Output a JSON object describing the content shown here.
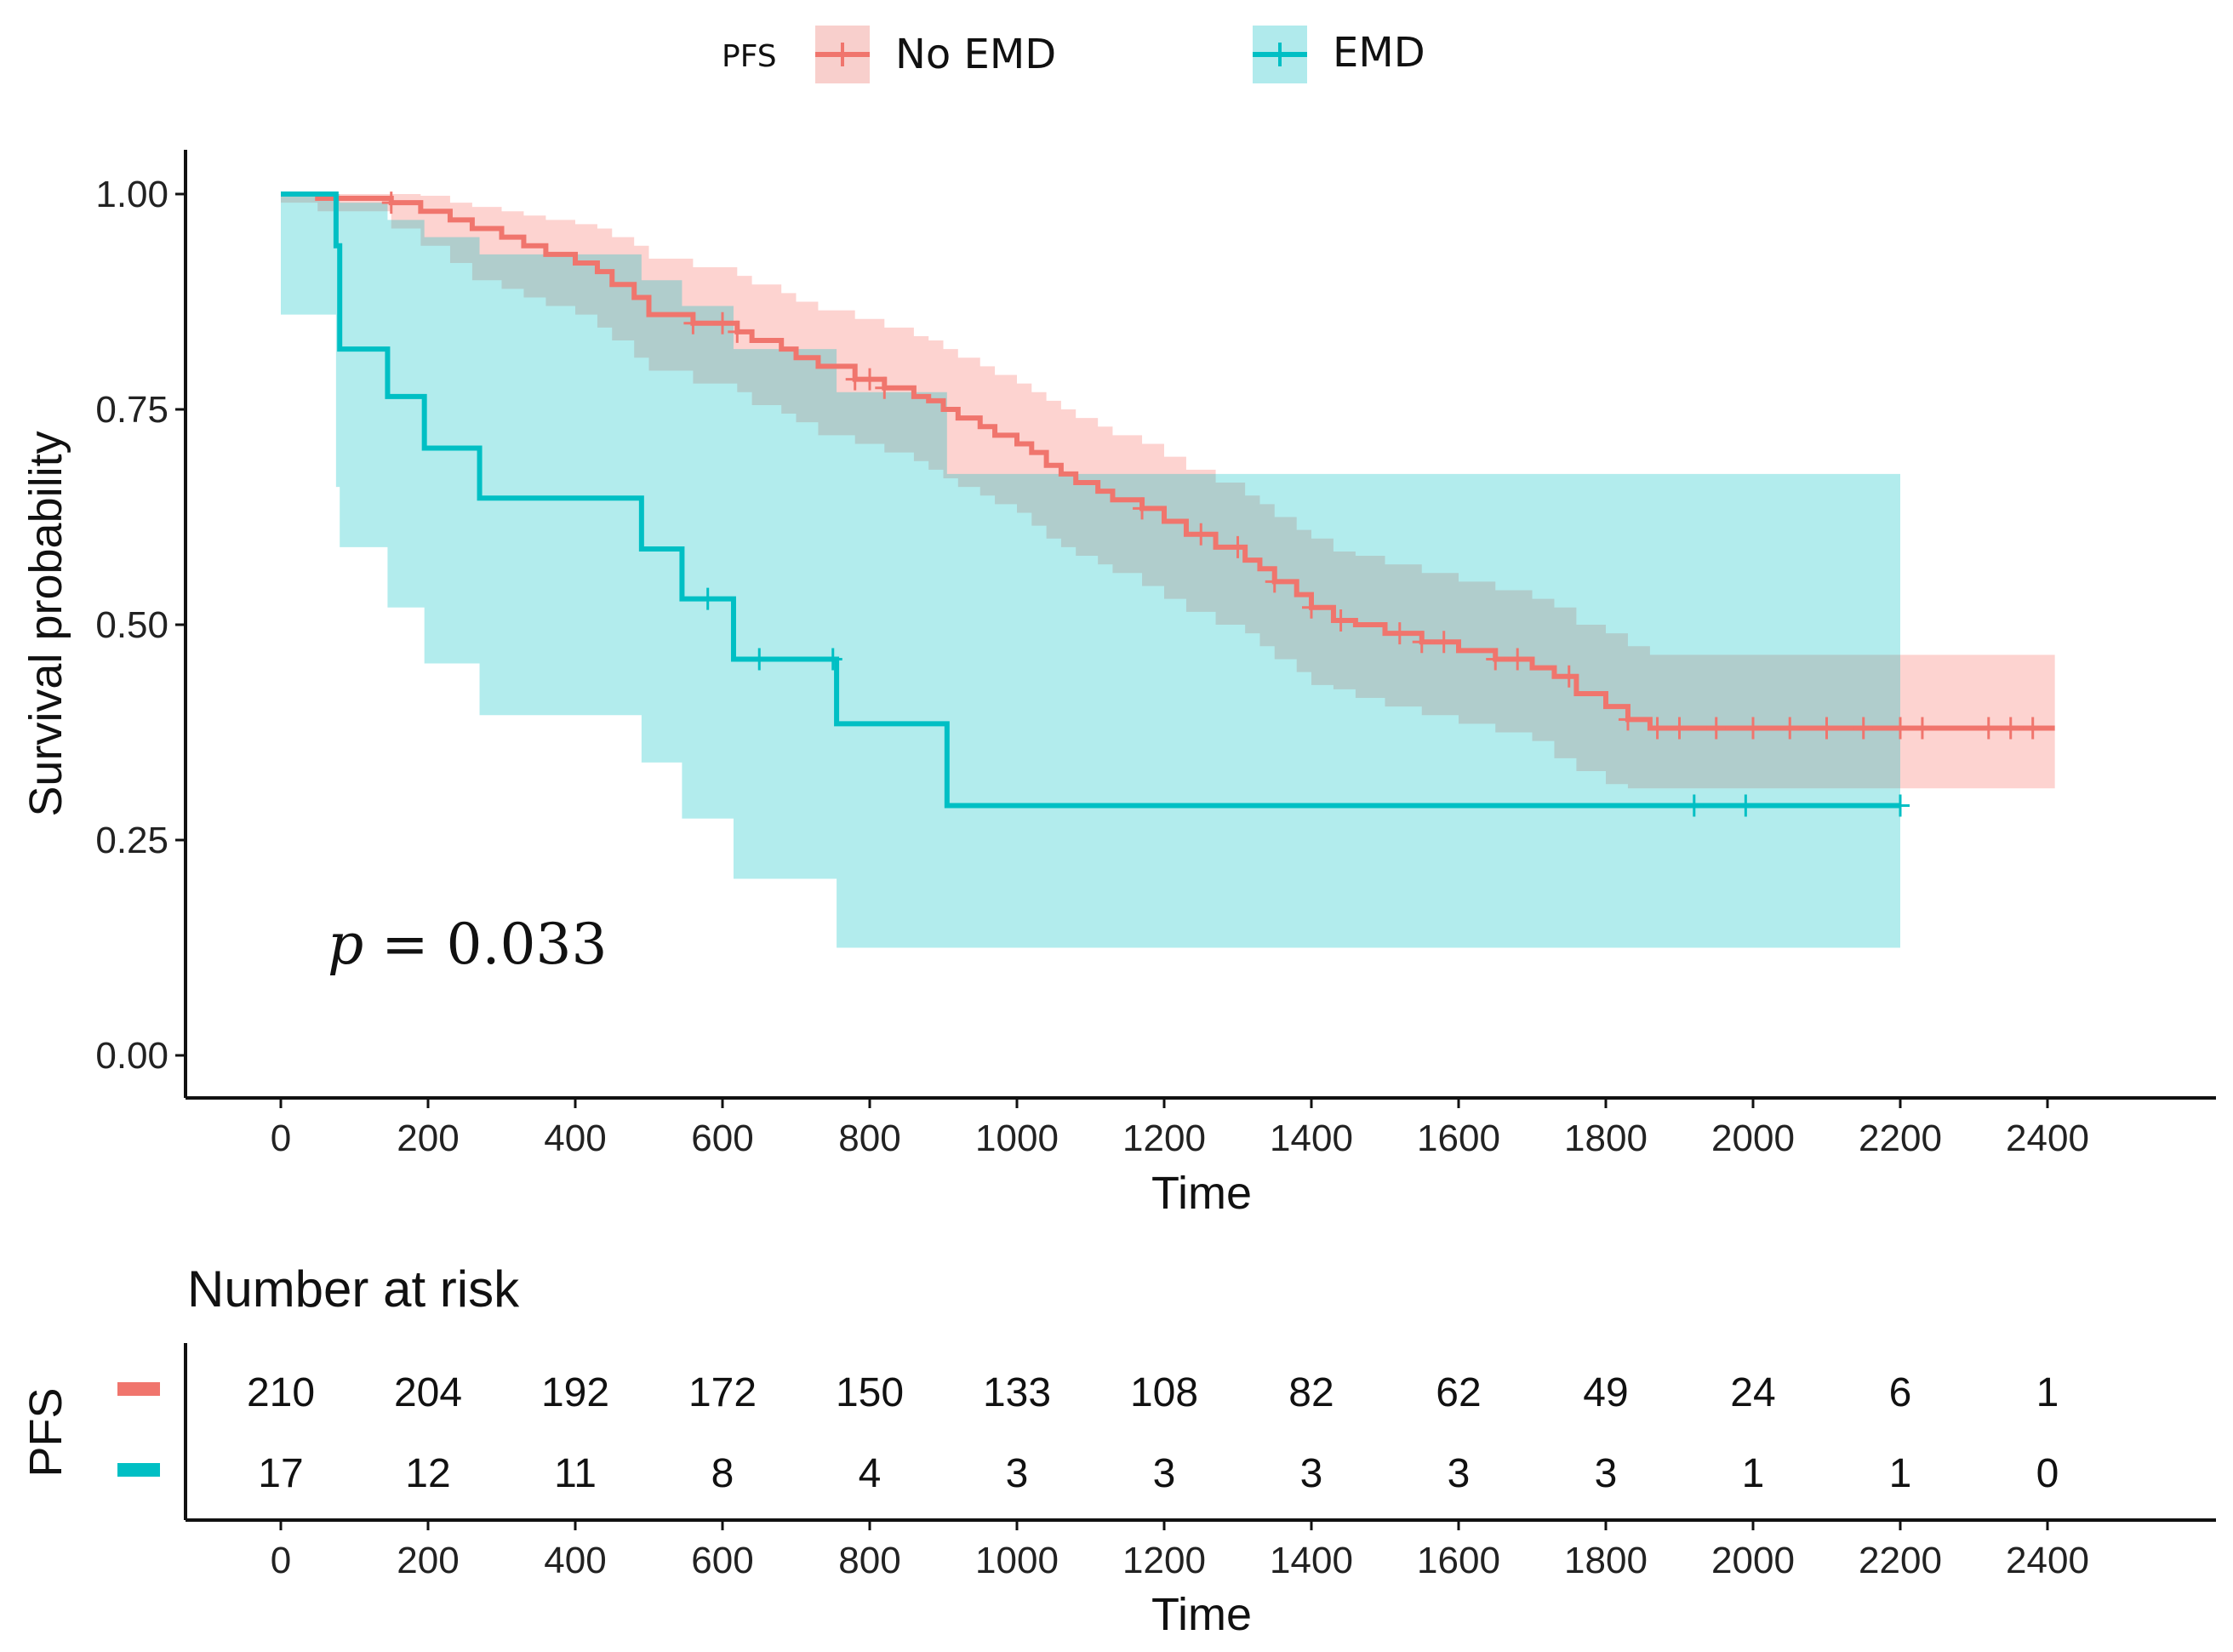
{
  "legend": {
    "title": "PFS",
    "entries": [
      {
        "label": "No EMD",
        "color": "#F0756D",
        "fill": "#F8CFCC"
      },
      {
        "label": "EMD",
        "color": "#00BFC4",
        "fill": "#B0EAEC"
      }
    ]
  },
  "annotation": {
    "p_label": "p",
    "p_eq": " = ",
    "p_value": "0.033"
  },
  "risk_table": {
    "title": "Number at risk",
    "ylabel": "PFS",
    "xlabel": "Time",
    "rows": [
      {
        "group": "No EMD",
        "color": "#F0756D",
        "counts": [
          "210",
          "204",
          "192",
          "172",
          "150",
          "133",
          "108",
          "82",
          "62",
          "49",
          "24",
          "6",
          "1"
        ]
      },
      {
        "group": "EMD",
        "color": "#00BFC4",
        "counts": [
          "17",
          "12",
          "11",
          "8",
          "4",
          "3",
          "3",
          "3",
          "3",
          "3",
          "1",
          "1",
          "0"
        ]
      }
    ]
  },
  "chart_data": {
    "type": "line",
    "subtype": "kaplan-meier step",
    "xlabel": "Time",
    "ylabel": "Survival probability",
    "xlim": [
      -125,
      2625
    ],
    "ylim": [
      -0.05,
      1.05
    ],
    "xticks": [
      "0",
      "200",
      "400",
      "600",
      "800",
      "1000",
      "1200",
      "1400",
      "1600",
      "1800",
      "2000",
      "2200",
      "2400"
    ],
    "xtick_values": [
      0,
      200,
      400,
      600,
      800,
      1000,
      1200,
      1400,
      1600,
      1800,
      2000,
      2200,
      2400
    ],
    "yticks": [
      "0.00",
      "0.25",
      "0.50",
      "0.75",
      "1.00"
    ],
    "ytick_values": [
      0,
      0.25,
      0.5,
      0.75,
      1.0
    ],
    "series": [
      {
        "name": "No EMD",
        "color": "#F0756D",
        "x": [
          0,
          50,
          150,
          190,
          230,
          260,
          300,
          330,
          360,
          400,
          430,
          450,
          480,
          500,
          560,
          620,
          640,
          680,
          700,
          730,
          780,
          820,
          860,
          880,
          900,
          920,
          950,
          970,
          1000,
          1020,
          1040,
          1060,
          1080,
          1110,
          1130,
          1170,
          1200,
          1230,
          1270,
          1310,
          1330,
          1350,
          1380,
          1400,
          1430,
          1460,
          1500,
          1550,
          1600,
          1650,
          1700,
          1730,
          1760,
          1800,
          1830,
          1860,
          2410
        ],
        "y": [
          1.0,
          0.995,
          0.99,
          0.98,
          0.97,
          0.96,
          0.95,
          0.94,
          0.93,
          0.92,
          0.91,
          0.895,
          0.88,
          0.86,
          0.85,
          0.84,
          0.83,
          0.82,
          0.81,
          0.8,
          0.785,
          0.775,
          0.765,
          0.76,
          0.75,
          0.74,
          0.73,
          0.72,
          0.71,
          0.7,
          0.685,
          0.675,
          0.665,
          0.655,
          0.645,
          0.635,
          0.62,
          0.605,
          0.59,
          0.575,
          0.565,
          0.55,
          0.535,
          0.52,
          0.505,
          0.5,
          0.49,
          0.48,
          0.47,
          0.46,
          0.45,
          0.44,
          0.42,
          0.405,
          0.39,
          0.38,
          0.38
        ],
        "ci_lower": [
          1.0,
          0.99,
          0.98,
          0.96,
          0.94,
          0.92,
          0.9,
          0.89,
          0.88,
          0.87,
          0.86,
          0.845,
          0.83,
          0.81,
          0.795,
          0.78,
          0.77,
          0.755,
          0.745,
          0.735,
          0.72,
          0.71,
          0.7,
          0.69,
          0.68,
          0.67,
          0.66,
          0.65,
          0.64,
          0.63,
          0.615,
          0.6,
          0.59,
          0.58,
          0.57,
          0.56,
          0.545,
          0.53,
          0.515,
          0.5,
          0.49,
          0.475,
          0.46,
          0.445,
          0.43,
          0.425,
          0.415,
          0.405,
          0.395,
          0.385,
          0.375,
          0.365,
          0.345,
          0.33,
          0.315,
          0.31,
          0.31
        ],
        "ci_upper": [
          1.0,
          1.0,
          1.0,
          0.998,
          0.99,
          0.985,
          0.98,
          0.975,
          0.97,
          0.965,
          0.96,
          0.95,
          0.94,
          0.925,
          0.915,
          0.905,
          0.895,
          0.885,
          0.875,
          0.865,
          0.855,
          0.845,
          0.835,
          0.83,
          0.82,
          0.81,
          0.8,
          0.79,
          0.78,
          0.77,
          0.76,
          0.75,
          0.74,
          0.73,
          0.72,
          0.71,
          0.695,
          0.68,
          0.665,
          0.65,
          0.64,
          0.625,
          0.61,
          0.6,
          0.585,
          0.58,
          0.57,
          0.56,
          0.55,
          0.54,
          0.53,
          0.52,
          0.5,
          0.49,
          0.475,
          0.465,
          0.465
        ],
        "censor_x": [
          150,
          560,
          600,
          620,
          780,
          800,
          820,
          1170,
          1250,
          1300,
          1350,
          1400,
          1440,
          1520,
          1550,
          1580,
          1650,
          1680,
          1750,
          1830,
          1870,
          1900,
          1950,
          2000,
          2050,
          2100,
          2150,
          2200,
          2230,
          2320,
          2350,
          2380
        ]
      },
      {
        "name": "EMD",
        "color": "#00BFC4",
        "x": [
          0,
          75,
          80,
          145,
          195,
          270,
          490,
          545,
          615,
          755,
          905,
          2200
        ],
        "y": [
          1.0,
          0.94,
          0.82,
          0.765,
          0.705,
          0.647,
          0.588,
          0.53,
          0.46,
          0.385,
          0.29,
          0.29
        ],
        "ci_lower": [
          1.0,
          0.86,
          0.66,
          0.59,
          0.52,
          0.455,
          0.395,
          0.34,
          0.275,
          0.205,
          0.125,
          0.125
        ],
        "ci_upper": [
          1.0,
          1.0,
          0.99,
          0.97,
          0.95,
          0.93,
          0.9,
          0.87,
          0.82,
          0.77,
          0.675,
          0.675
        ],
        "censor_x": [
          580,
          650,
          750,
          1920,
          1990,
          2200
        ]
      }
    ]
  }
}
